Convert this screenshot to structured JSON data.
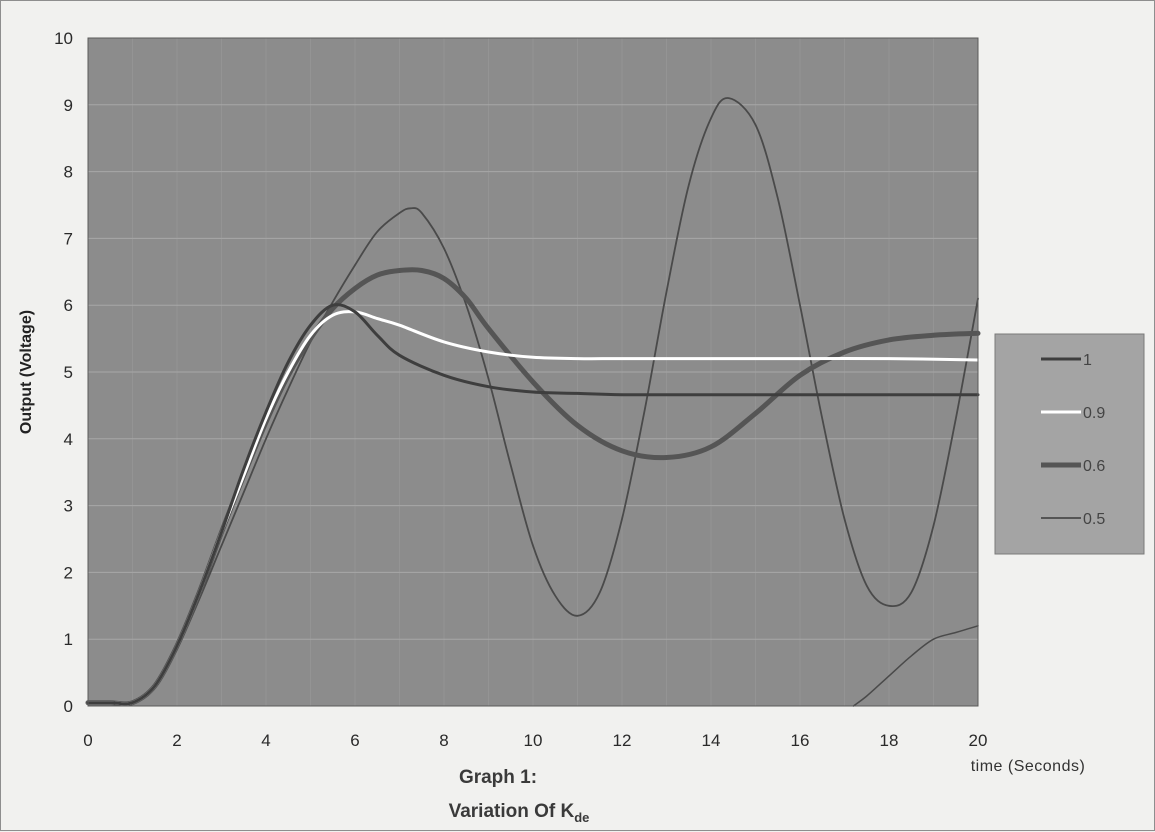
{
  "chart_data": {
    "type": "line",
    "title_line1": "Graph 1:",
    "title_line2_main": "Variation Of K",
    "title_line2_sub": "de",
    "xlabel": "time (Seconds)",
    "ylabel": "Output (Voltage)",
    "xlim": [
      0,
      20
    ],
    "ylim": [
      0,
      10
    ],
    "xticks": [
      0,
      2,
      4,
      6,
      8,
      10,
      12,
      14,
      16,
      18,
      20
    ],
    "yticks": [
      0,
      1,
      2,
      3,
      4,
      5,
      6,
      7,
      8,
      9,
      10
    ],
    "grid": true,
    "legend_position": "right",
    "colors": {
      "plot_background": "#8c8c8c",
      "figure_background": "#f1f1ef",
      "legend_background": "#a4a4a4",
      "gridline": "#a7a7a7"
    },
    "series": [
      {
        "name": "1",
        "color": "#3e3e3e",
        "width": 3,
        "x": [
          0,
          0.5,
          1,
          1.5,
          2,
          2.5,
          3,
          3.5,
          4,
          4.5,
          5,
          5.5,
          6,
          6.5,
          7,
          8,
          9,
          10,
          11,
          12,
          14,
          16,
          18,
          20
        ],
        "y": [
          0.05,
          0.05,
          0.05,
          0.3,
          0.9,
          1.7,
          2.6,
          3.55,
          4.4,
          5.15,
          5.7,
          6.0,
          5.9,
          5.55,
          5.25,
          4.95,
          4.78,
          4.7,
          4.68,
          4.66,
          4.66,
          4.66,
          4.66,
          4.66
        ]
      },
      {
        "name": "0.9",
        "color": "#ffffff",
        "width": 3,
        "x": [
          0,
          0.5,
          1,
          1.5,
          2,
          2.5,
          3,
          3.5,
          4,
          4.5,
          5,
          5.5,
          6,
          6.5,
          7,
          8,
          9,
          10,
          11,
          12,
          14,
          16,
          18,
          20
        ],
        "y": [
          0.05,
          0.05,
          0.05,
          0.3,
          0.9,
          1.7,
          2.6,
          3.45,
          4.3,
          5.0,
          5.55,
          5.85,
          5.9,
          5.8,
          5.7,
          5.45,
          5.3,
          5.22,
          5.2,
          5.2,
          5.2,
          5.2,
          5.2,
          5.18
        ]
      },
      {
        "name": "0.6",
        "color": "#555555",
        "width": 5,
        "x": [
          0,
          0.5,
          1,
          1.5,
          2,
          2.5,
          3,
          3.5,
          4,
          4.5,
          5,
          5.5,
          6,
          6.5,
          7,
          7.5,
          8,
          8.5,
          9,
          10,
          11,
          12,
          13,
          14,
          15,
          16,
          17,
          18,
          19,
          20
        ],
        "y": [
          0.05,
          0.05,
          0.05,
          0.3,
          0.9,
          1.7,
          2.6,
          3.45,
          4.25,
          4.95,
          5.5,
          5.95,
          6.25,
          6.45,
          6.52,
          6.52,
          6.4,
          6.1,
          5.65,
          4.85,
          4.2,
          3.82,
          3.72,
          3.88,
          4.38,
          4.95,
          5.3,
          5.48,
          5.55,
          5.58
        ]
      },
      {
        "name": "0.5",
        "color": "#4a4a4a",
        "width": 1.8,
        "x": [
          0,
          0.5,
          1,
          1.5,
          2,
          2.5,
          3,
          3.5,
          4,
          4.5,
          5,
          5.5,
          6,
          6.5,
          7,
          7.25,
          7.5,
          8,
          8.5,
          9,
          9.5,
          10,
          10.5,
          11,
          11.5,
          12,
          12.5,
          13,
          13.5,
          14,
          14.4,
          15,
          15.5,
          16,
          16.5,
          17,
          17.5,
          18,
          18.5,
          19,
          19.5,
          20
        ],
        "y": [
          0.05,
          0.05,
          0.05,
          0.3,
          0.85,
          1.6,
          2.4,
          3.2,
          4.0,
          4.75,
          5.45,
          6.05,
          6.6,
          7.1,
          7.38,
          7.45,
          7.38,
          6.85,
          6.0,
          4.9,
          3.6,
          2.4,
          1.65,
          1.35,
          1.7,
          2.8,
          4.4,
          6.2,
          7.8,
          8.8,
          9.1,
          8.7,
          7.6,
          6.0,
          4.3,
          2.8,
          1.8,
          1.5,
          1.7,
          2.7,
          4.3,
          6.1
        ]
      },
      {
        "name": "",
        "color": "#4a4a4a",
        "width": 1.5,
        "show_in_legend": false,
        "x": [
          17.2,
          17.5,
          18,
          18.5,
          19,
          19.5,
          20
        ],
        "y": [
          0.0,
          0.15,
          0.45,
          0.75,
          1.0,
          1.1,
          1.2
        ]
      }
    ]
  }
}
